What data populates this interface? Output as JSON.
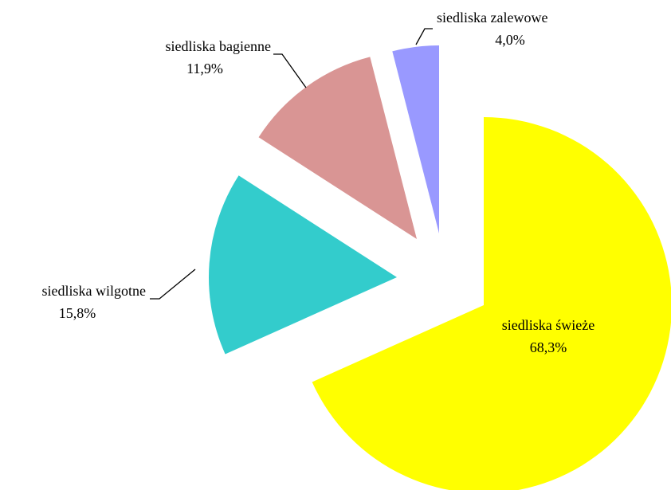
{
  "chart_data": {
    "type": "pie",
    "categories": [
      "siedliska świeże",
      "siedliska wilgotne",
      "siedliska bagienne",
      "siedliska zalewowe"
    ],
    "values": [
      68.3,
      15.8,
      11.9,
      4.0
    ],
    "value_labels": [
      "68,3%",
      "15,8%",
      "11,9%",
      "4,0%"
    ],
    "colors": [
      "#ffff00",
      "#33cccc",
      "#d99594",
      "#9999ff"
    ]
  }
}
